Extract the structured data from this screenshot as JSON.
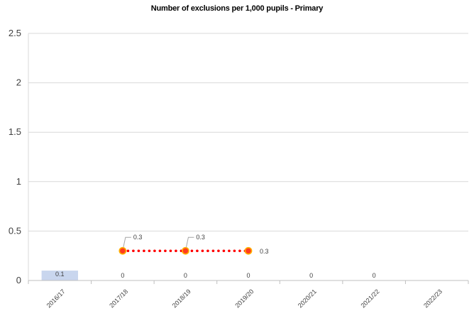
{
  "chart_data": {
    "type": "bar",
    "title": "Number of exclusions per 1,000 pupils - Primary",
    "xlabel": "",
    "ylabel": "",
    "ylim": [
      0,
      2.5
    ],
    "yticks": [
      "0",
      "0.5",
      "1",
      "1.5",
      "2",
      "2.5"
    ],
    "grid": true,
    "categories": [
      "2016/17",
      "2017/18",
      "2018/19",
      "2019/20",
      "2020/21",
      "2021/22",
      "2022/23"
    ],
    "series": [
      {
        "type": "bar",
        "values": [
          0.1,
          0,
          0,
          0,
          0,
          0,
          null
        ],
        "labels": [
          "0.1",
          "0",
          "0",
          "0",
          "0",
          "0",
          ""
        ],
        "color": "#c9d6ee"
      },
      {
        "type": "line",
        "style": "dotted",
        "values": [
          null,
          0.3,
          0.3,
          0.3,
          null,
          null,
          null
        ],
        "labels": [
          "",
          "0.3",
          "0.3",
          "0.3",
          "",
          "",
          ""
        ],
        "color": "#ff0000",
        "marker_fill": "#ff3b1f",
        "marker_edge": "#ffb000"
      }
    ]
  }
}
